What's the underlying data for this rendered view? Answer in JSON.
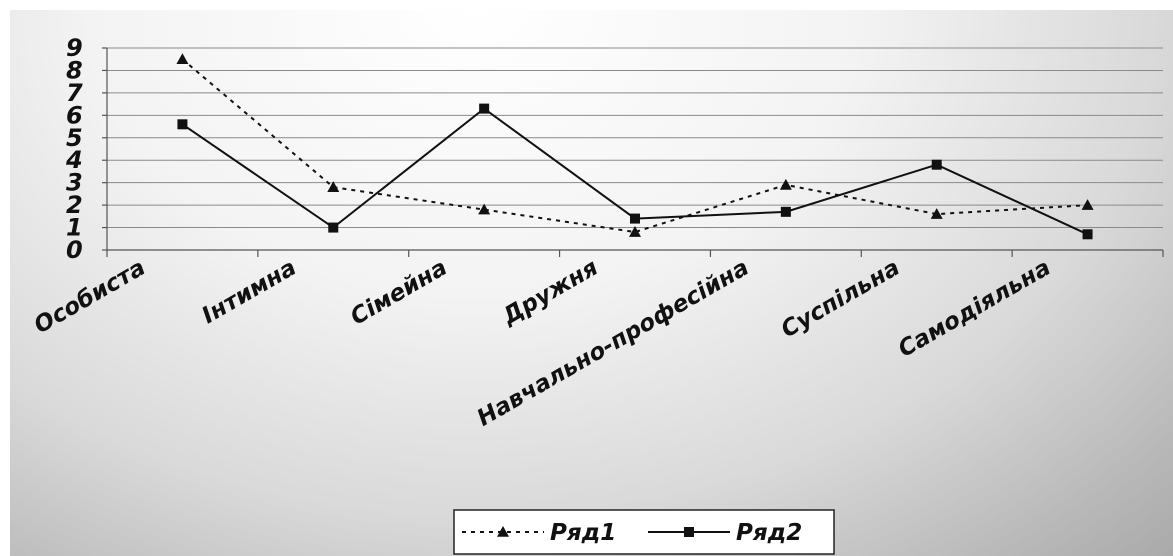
{
  "chart_data": {
    "type": "line",
    "title": "",
    "xlabel": "",
    "ylabel": "",
    "categories": [
      "Особиста",
      "Інтимна",
      "Сімейна",
      "Дружня",
      "Навчально-професійна",
      "Суспільна",
      "Самодіяльна"
    ],
    "ylim": [
      0,
      9
    ],
    "yticks": [
      "0",
      "1",
      "2",
      "3",
      "4",
      "5",
      "6",
      "7",
      "8",
      "9"
    ],
    "grid": true,
    "legend_position": "bottom",
    "series": [
      {
        "name": "Ряд1",
        "line_style": "dashed",
        "marker": "triangle",
        "color": "#111111",
        "values": [
          8.5,
          2.8,
          1.8,
          0.8,
          2.9,
          1.6,
          2.0
        ]
      },
      {
        "name": "Ряд2",
        "line_style": "solid",
        "marker": "square",
        "color": "#111111",
        "values": [
          5.6,
          1.0,
          6.3,
          1.4,
          1.7,
          3.8,
          0.7
        ]
      }
    ]
  }
}
